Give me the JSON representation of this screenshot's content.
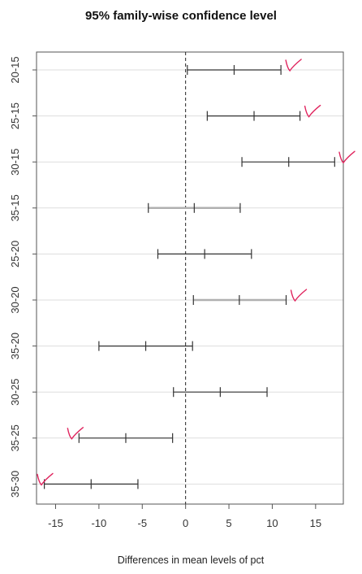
{
  "chart_data": {
    "type": "interval",
    "title": "95% family-wise confidence level",
    "xlabel": "Differences in mean levels of pct",
    "ylabel": "",
    "xlim": [
      -17.2,
      18.2
    ],
    "xticks": [
      -15,
      -10,
      -5,
      0,
      5,
      10,
      15
    ],
    "reference_line": 0,
    "grid": "horizontal",
    "comparisons": [
      {
        "label": "20-15",
        "lwr": 0.2,
        "diff": 5.6,
        "upr": 11.0
      },
      {
        "label": "25-15",
        "lwr": 2.5,
        "diff": 7.9,
        "upr": 13.2
      },
      {
        "label": "30-15",
        "lwr": 6.5,
        "diff": 11.9,
        "upr": 17.2
      },
      {
        "label": "35-15",
        "lwr": -4.3,
        "diff": 1.0,
        "upr": 6.3
      },
      {
        "label": "25-20",
        "lwr": -3.2,
        "diff": 2.2,
        "upr": 7.6
      },
      {
        "label": "30-20",
        "lwr": 0.9,
        "diff": 6.2,
        "upr": 11.6
      },
      {
        "label": "35-20",
        "lwr": -10.0,
        "diff": -4.6,
        "upr": 0.8
      },
      {
        "label": "30-25",
        "lwr": -1.4,
        "diff": 4.0,
        "upr": 9.4
      },
      {
        "label": "35-25",
        "lwr": -12.3,
        "diff": -6.9,
        "upr": -1.5
      },
      {
        "label": "35-30",
        "lwr": -16.3,
        "diff": -10.9,
        "upr": -5.5
      }
    ],
    "annotations": {
      "checkmark_color": "#e0245e",
      "checkmarks": [
        {
          "row": 0,
          "side": "right"
        },
        {
          "row": 1,
          "side": "right"
        },
        {
          "row": 2,
          "side": "right"
        },
        {
          "row": 5,
          "side": "right"
        },
        {
          "row": 8,
          "side": "left"
        },
        {
          "row": 9,
          "side": "left"
        }
      ]
    },
    "colors": {
      "interval": "#333333",
      "interval_light": "#b0b0b0",
      "grid": "#dddddd",
      "frame": "#555555",
      "zero_line": "#222222"
    }
  }
}
